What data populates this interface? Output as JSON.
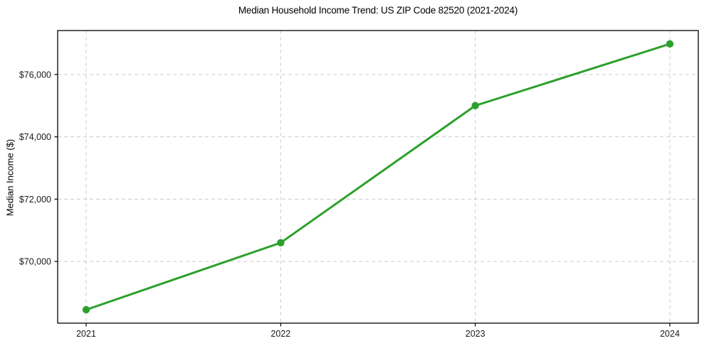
{
  "chart_data": {
    "type": "line",
    "title": "Median Household Income Trend: US ZIP Code 82520 (2021-2024)",
    "ylabel": "Median Income ($)",
    "categories": [
      "2021",
      "2022",
      "2023",
      "2024"
    ],
    "series": [
      {
        "name": "Median Household Income",
        "values": [
          68450,
          70600,
          75000,
          76980
        ]
      }
    ],
    "yticks": [
      70000,
      72000,
      74000,
      76000
    ],
    "ytick_labels": [
      "$70,000",
      "$72,000",
      "$74,000",
      "$76,000"
    ],
    "ylim": [
      68020,
      77410
    ],
    "grid": true,
    "grid_style": "dashed",
    "legend": "none",
    "colors": {
      "line": "#2ca02c",
      "marker": "#2ca02c",
      "grid": "#cbcbcb",
      "spine": "#000000",
      "background": "#ffffff"
    }
  }
}
